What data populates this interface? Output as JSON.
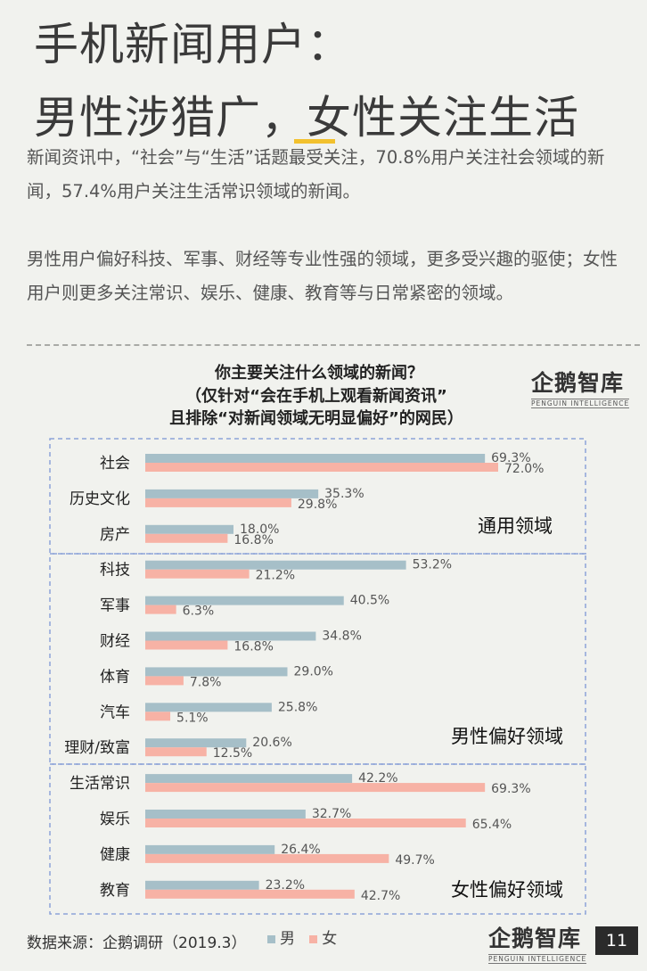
{
  "header": {
    "title_line1": "手机新闻用户：",
    "title_line2": "男性涉猎广，女性关注生活",
    "para1": "新闻资讯中，“社会”与“生活”话题最受关注，70.8%用户关注社会领域的新闻，57.4%用户关注生活常识领域的新闻。",
    "para2": "男性用户偏好科技、军事、财经等专业性强的领域，更多受兴趣的驱使；女性用户则更多关注常识、娱乐、健康、教育等与日常紧密的领域。"
  },
  "chart_title": {
    "line1": "你主要关注什么领域的新闻？",
    "line2": "（仅针对“会在手机上观看新闻资讯”",
    "line3": "且排除“对新闻领域无明显偏好”的网民）"
  },
  "logo": {
    "main": "企鹅智库",
    "sub": "PENGUIN INTELLIGENCE"
  },
  "footer": {
    "source": "数据来源：企鹅调研（2019.3）",
    "page": "11"
  },
  "colors": {
    "male": "#a6bfc8",
    "female": "#f7b2a5",
    "dash": "#8da3d8"
  },
  "chart_data": {
    "type": "bar",
    "orientation": "horizontal",
    "title": "你主要关注什么领域的新闻？（仅针对“会在手机上观看新闻资讯”且排除“对新闻领域无明显偏好”的网民）",
    "categories": [
      "社会",
      "历史文化",
      "房产",
      "科技",
      "军事",
      "财经",
      "体育",
      "汽车",
      "理财/致富",
      "生活常识",
      "娱乐",
      "健康",
      "教育"
    ],
    "series": [
      {
        "name": "男",
        "values": [
          69.3,
          35.3,
          18.0,
          53.2,
          40.5,
          34.8,
          29.0,
          25.8,
          20.6,
          42.2,
          32.7,
          26.4,
          23.2
        ]
      },
      {
        "name": "女",
        "values": [
          72.0,
          29.8,
          16.8,
          21.2,
          6.3,
          16.8,
          7.8,
          5.1,
          12.5,
          69.3,
          65.4,
          49.7,
          42.7
        ]
      }
    ],
    "value_labels": {
      "男": [
        "69.3%",
        "35.3%",
        "18.0%",
        "53.2%",
        "40.5%",
        "34.8%",
        "29.0%",
        "25.8%",
        "20.6%",
        "42.2%",
        "32.7%",
        "26.4%",
        "23.2%"
      ],
      "女": [
        "72.0%",
        "29.8%",
        "16.8%",
        "21.2%",
        "6.3%",
        "16.8%",
        "7.8%",
        "5.1%",
        "12.5%",
        "69.3%",
        "65.4%",
        "49.7%",
        "42.7%"
      ]
    },
    "groups": [
      {
        "label": "通用领域",
        "categories": [
          "社会",
          "历史文化",
          "房产"
        ]
      },
      {
        "label": "男性偏好领域",
        "categories": [
          "科技",
          "军事",
          "财经",
          "体育",
          "汽车",
          "理财/致富"
        ]
      },
      {
        "label": "女性偏好领域",
        "categories": [
          "生活常识",
          "娱乐",
          "健康",
          "教育"
        ]
      }
    ],
    "xlim": [
      0,
      100
    ],
    "grid": false,
    "legend": "bottom"
  }
}
